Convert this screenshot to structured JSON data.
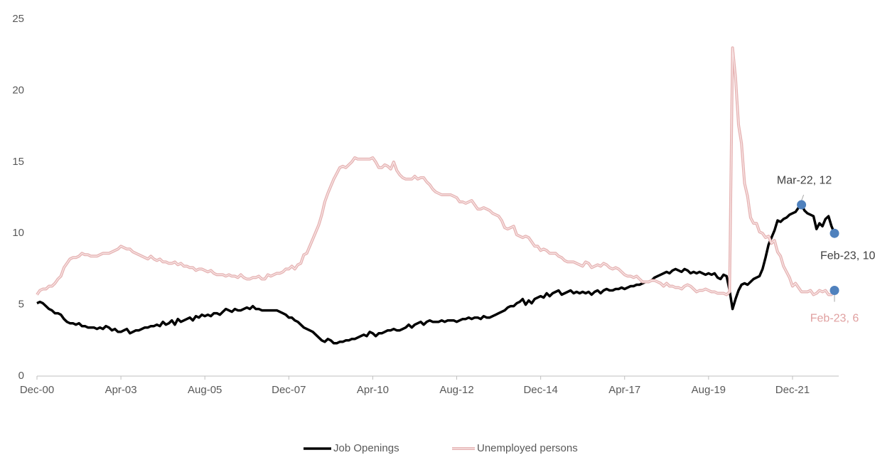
{
  "chart_data": {
    "type": "line",
    "categories": [
      "Dec-00",
      null,
      null,
      null,
      null,
      null,
      null,
      null,
      null,
      null,
      null,
      null,
      null,
      null,
      null,
      null,
      null,
      null,
      null,
      null,
      null,
      null,
      null,
      null,
      null,
      null,
      null,
      null,
      "Apr-03",
      null,
      null,
      null,
      null,
      null,
      null,
      null,
      null,
      null,
      null,
      null,
      null,
      null,
      null,
      null,
      null,
      null,
      null,
      null,
      null,
      null,
      null,
      null,
      null,
      null,
      null,
      null,
      "Aug-05",
      null,
      null,
      null,
      null,
      null,
      null,
      null,
      null,
      null,
      null,
      null,
      null,
      null,
      null,
      null,
      null,
      null,
      null,
      null,
      null,
      null,
      null,
      null,
      null,
      null,
      null,
      null,
      "Dec-07",
      null,
      null,
      null,
      null,
      null,
      null,
      null,
      null,
      null,
      null,
      null,
      null,
      null,
      null,
      null,
      null,
      null,
      null,
      null,
      null,
      null,
      null,
      null,
      null,
      null,
      null,
      null,
      "Apr-10",
      null,
      null,
      null,
      null,
      null,
      null,
      null,
      null,
      null,
      null,
      null,
      null,
      null,
      null,
      null,
      null,
      null,
      null,
      null,
      null,
      null,
      null,
      null,
      null,
      null,
      null,
      null,
      "Aug-12",
      null,
      null,
      null,
      null,
      null,
      null,
      null,
      null,
      null,
      null,
      null,
      null,
      null,
      null,
      null,
      null,
      null,
      null,
      null,
      null,
      null,
      null,
      null,
      null,
      null,
      null,
      null,
      "Dec-14",
      null,
      null,
      null,
      null,
      null,
      null,
      null,
      null,
      null,
      null,
      null,
      null,
      null,
      null,
      null,
      null,
      null,
      null,
      null,
      null,
      null,
      null,
      null,
      null,
      null,
      null,
      null,
      "Apr-17",
      null,
      null,
      null,
      null,
      null,
      null,
      null,
      null,
      null,
      null,
      null,
      null,
      null,
      null,
      null,
      null,
      null,
      null,
      null,
      null,
      null,
      null,
      null,
      null,
      null,
      null,
      null,
      "Aug-19",
      null,
      null,
      null,
      null,
      null,
      null,
      null,
      null,
      null,
      null,
      null,
      null,
      null,
      null,
      null,
      null,
      null,
      null,
      null,
      null,
      null,
      null,
      null,
      null,
      null,
      null,
      null,
      "Dec-21",
      null,
      null,
      null,
      null,
      null,
      null,
      null,
      null,
      null,
      null,
      null,
      null,
      null,
      null
    ],
    "series": [
      {
        "name": "Job Openings",
        "color": "#000000",
        "values": [
          5.1,
          5.2,
          5.1,
          4.9,
          4.7,
          4.6,
          4.4,
          4.4,
          4.3,
          4.0,
          3.8,
          3.7,
          3.7,
          3.6,
          3.7,
          3.5,
          3.5,
          3.4,
          3.4,
          3.4,
          3.3,
          3.4,
          3.3,
          3.5,
          3.4,
          3.2,
          3.3,
          3.1,
          3.1,
          3.2,
          3.3,
          3.0,
          3.1,
          3.2,
          3.2,
          3.3,
          3.4,
          3.4,
          3.5,
          3.5,
          3.6,
          3.5,
          3.8,
          3.6,
          3.7,
          3.9,
          3.6,
          4.0,
          3.8,
          3.9,
          4.0,
          4.1,
          3.9,
          4.2,
          4.1,
          4.3,
          4.2,
          4.3,
          4.2,
          4.4,
          4.4,
          4.3,
          4.5,
          4.7,
          4.6,
          4.5,
          4.7,
          4.6,
          4.6,
          4.7,
          4.8,
          4.7,
          4.9,
          4.7,
          4.7,
          4.6,
          4.6,
          4.6,
          4.6,
          4.6,
          4.6,
          4.5,
          4.4,
          4.3,
          4.1,
          4.1,
          3.9,
          3.8,
          3.6,
          3.4,
          3.3,
          3.2,
          3.1,
          2.9,
          2.7,
          2.5,
          2.4,
          2.6,
          2.5,
          2.3,
          2.3,
          2.4,
          2.4,
          2.5,
          2.5,
          2.6,
          2.6,
          2.7,
          2.8,
          2.9,
          2.8,
          3.1,
          3.0,
          2.8,
          3.0,
          3.0,
          3.1,
          3.2,
          3.2,
          3.3,
          3.2,
          3.2,
          3.3,
          3.4,
          3.6,
          3.4,
          3.6,
          3.7,
          3.8,
          3.6,
          3.8,
          3.9,
          3.8,
          3.8,
          3.8,
          3.9,
          3.8,
          3.9,
          3.9,
          3.9,
          3.8,
          3.9,
          4.0,
          4.0,
          4.1,
          4.0,
          4.1,
          4.1,
          4.0,
          4.2,
          4.1,
          4.1,
          4.2,
          4.3,
          4.4,
          4.5,
          4.6,
          4.8,
          4.9,
          4.9,
          5.1,
          5.2,
          5.4,
          5.0,
          5.3,
          5.1,
          5.4,
          5.5,
          5.6,
          5.5,
          5.8,
          5.6,
          5.8,
          5.9,
          6.0,
          5.7,
          5.8,
          5.9,
          6.0,
          5.8,
          5.9,
          5.8,
          5.9,
          5.8,
          5.9,
          5.7,
          5.9,
          6.0,
          5.8,
          6.0,
          6.1,
          6.0,
          6.0,
          6.1,
          6.1,
          6.2,
          6.1,
          6.2,
          6.3,
          6.3,
          6.4,
          6.4,
          6.5,
          6.6,
          6.6,
          6.7,
          6.9,
          7.0,
          7.1,
          7.2,
          7.3,
          7.2,
          7.4,
          7.5,
          7.4,
          7.3,
          7.5,
          7.4,
          7.2,
          7.3,
          7.2,
          7.3,
          7.2,
          7.1,
          7.2,
          7.1,
          7.2,
          6.9,
          6.8,
          7.1,
          7.0,
          6.0,
          4.7,
          5.4,
          6.0,
          6.4,
          6.5,
          6.4,
          6.6,
          6.8,
          6.9,
          7.0,
          7.5,
          8.3,
          9.2,
          9.7,
          10.2,
          10.9,
          10.8,
          11.0,
          11.1,
          11.3,
          11.4,
          11.5,
          11.8,
          12.0,
          11.6,
          11.4,
          11.3,
          11.2,
          10.3,
          10.7,
          10.5,
          11.0,
          11.2,
          10.5,
          10.0
        ]
      },
      {
        "name": "Unemployed persons",
        "color": "#e6b4b4",
        "values": [
          5.7,
          6.0,
          6.1,
          6.1,
          6.3,
          6.3,
          6.5,
          6.8,
          7.0,
          7.6,
          7.9,
          8.2,
          8.3,
          8.3,
          8.4,
          8.6,
          8.5,
          8.5,
          8.4,
          8.4,
          8.4,
          8.5,
          8.6,
          8.6,
          8.6,
          8.7,
          8.8,
          8.9,
          9.1,
          9.0,
          8.9,
          8.9,
          8.7,
          8.6,
          8.5,
          8.4,
          8.3,
          8.2,
          8.4,
          8.2,
          8.1,
          8.2,
          8.0,
          8.0,
          7.9,
          7.9,
          8.0,
          7.8,
          7.9,
          7.7,
          7.7,
          7.6,
          7.6,
          7.4,
          7.5,
          7.5,
          7.4,
          7.3,
          7.4,
          7.2,
          7.1,
          7.1,
          7.1,
          7.0,
          7.1,
          7.0,
          7.0,
          6.9,
          7.1,
          6.9,
          6.8,
          6.8,
          6.9,
          6.9,
          7.0,
          6.8,
          6.8,
          7.1,
          7.0,
          7.1,
          7.2,
          7.2,
          7.3,
          7.5,
          7.5,
          7.7,
          7.5,
          7.8,
          7.9,
          8.5,
          8.6,
          9.1,
          9.6,
          10.1,
          10.6,
          11.3,
          12.2,
          12.8,
          13.3,
          13.8,
          14.2,
          14.6,
          14.7,
          14.6,
          14.8,
          15.0,
          15.3,
          15.2,
          15.2,
          15.2,
          15.2,
          15.2,
          15.3,
          15.0,
          14.6,
          14.6,
          14.8,
          14.7,
          14.5,
          15.0,
          14.4,
          14.1,
          13.9,
          13.8,
          13.8,
          13.8,
          14.0,
          13.8,
          13.9,
          13.9,
          13.6,
          13.4,
          13.1,
          12.9,
          12.8,
          12.7,
          12.7,
          12.7,
          12.7,
          12.6,
          12.5,
          12.2,
          12.2,
          12.1,
          12.2,
          12.3,
          12.0,
          11.7,
          11.7,
          11.8,
          11.7,
          11.6,
          11.4,
          11.3,
          11.2,
          10.9,
          10.4,
          10.3,
          10.4,
          10.5,
          9.9,
          9.8,
          9.7,
          9.8,
          9.7,
          9.4,
          9.1,
          9.1,
          8.8,
          8.9,
          8.8,
          8.6,
          8.6,
          8.6,
          8.4,
          8.3,
          8.1,
          8.0,
          8.0,
          8.0,
          7.9,
          7.8,
          7.7,
          8.0,
          7.9,
          7.6,
          7.7,
          7.8,
          7.7,
          7.9,
          7.8,
          7.6,
          7.5,
          7.6,
          7.5,
          7.3,
          7.1,
          7.0,
          7.0,
          6.9,
          7.0,
          6.8,
          6.6,
          6.6,
          6.6,
          6.7,
          6.7,
          6.6,
          6.5,
          6.3,
          6.5,
          6.3,
          6.3,
          6.2,
          6.2,
          6.1,
          6.3,
          6.4,
          6.3,
          6.1,
          5.9,
          6.0,
          6.0,
          6.1,
          6.0,
          5.9,
          5.9,
          5.8,
          5.8,
          5.8,
          5.7,
          5.9,
          23.0,
          20.9,
          17.6,
          16.3,
          13.5,
          12.6,
          11.1,
          10.7,
          10.7,
          10.1,
          10.0,
          9.7,
          9.8,
          9.3,
          9.5,
          8.7,
          8.4,
          7.7,
          7.3,
          6.9,
          6.3,
          6.5,
          6.2,
          5.9,
          5.9,
          5.9,
          6.0,
          5.7,
          5.8,
          6.0,
          5.9,
          6.0,
          5.7,
          5.7,
          6.0
        ]
      }
    ],
    "ylim": [
      0,
      25
    ],
    "yticks": [
      0,
      5,
      10,
      15,
      20,
      25
    ],
    "grid": false,
    "legend": "bottom",
    "marker_color": "#4f81bd",
    "annotations": [
      {
        "text": "Mar-22, 12",
        "x": "Mar-22",
        "y": 12,
        "color": "#404040"
      },
      {
        "text": "Feb-23, 10",
        "x": "Feb-23",
        "y": 10,
        "color": "#404040"
      },
      {
        "text": "Feb-23, 6",
        "x": "Feb-23",
        "y": 6,
        "color": "#e0a0a0"
      }
    ]
  }
}
